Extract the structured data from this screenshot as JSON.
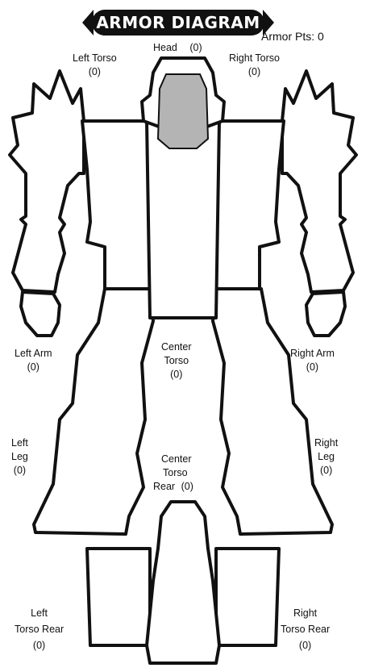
{
  "title": "ARMOR DIAGRAM",
  "armor_pts": "Armor Pts: 0",
  "locations": {
    "head": {
      "name": "Head",
      "value": "(0)"
    },
    "left_torso": {
      "name": "Left Torso",
      "value": "(0)"
    },
    "right_torso": {
      "name": "Right Torso",
      "value": "(0)"
    },
    "center_torso": {
      "name_line1": "Center",
      "name_line2": "Torso",
      "value": "(0)"
    },
    "left_arm": {
      "name": "Left Arm",
      "value": "(0)"
    },
    "right_arm": {
      "name": "Right Arm",
      "value": "(0)"
    },
    "left_leg": {
      "name_line1": "Left",
      "name_line2": "Leg",
      "value": "(0)"
    },
    "right_leg": {
      "name_line1": "Right",
      "name_line2": "Leg",
      "value": "(0)"
    },
    "center_torso_rear": {
      "name_line1": "Center",
      "name_line2": "Torso",
      "name_line3": "Rear",
      "value": "(0)"
    },
    "left_torso_rear": {
      "name_line1": "Left",
      "name_line2": "Torso Rear",
      "value": "(0)"
    },
    "right_torso_rear": {
      "name_line1": "Right",
      "name_line2": "Torso Rear",
      "value": "(0)"
    }
  },
  "colors": {
    "outline": "#111111",
    "fill": "#ffffff",
    "cockpit": "#b4b4b4"
  }
}
